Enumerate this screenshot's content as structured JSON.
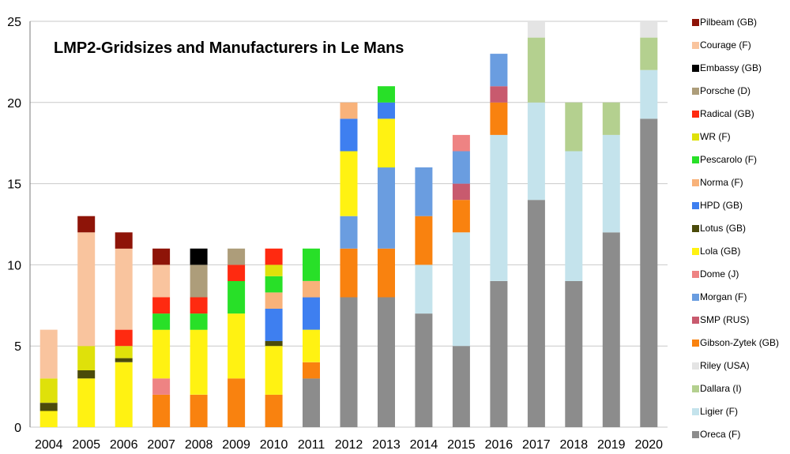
{
  "chart_data": {
    "type": "bar",
    "stacked": true,
    "title": "LMP2-Gridsizes and Manufacturers in Le Mans",
    "xlabel": "",
    "ylabel": "",
    "ylim": [
      0,
      25
    ],
    "yticks": [
      0,
      5,
      10,
      15,
      20,
      25
    ],
    "grid": true,
    "legend_position": "right",
    "categories": [
      "2004",
      "2005",
      "2006",
      "2007",
      "2008",
      "2009",
      "2010",
      "2011",
      "2012",
      "2013",
      "2014",
      "2015",
      "2016",
      "2017",
      "2018",
      "2019",
      "2020"
    ],
    "series": [
      {
        "name": "Oreca (F)",
        "color": "#8c8c8c",
        "values": [
          0,
          0,
          0,
          0,
          0,
          0,
          0,
          3,
          8,
          8,
          7,
          5,
          9,
          14,
          9,
          12,
          19
        ]
      },
      {
        "name": "Ligier (F)",
        "color": "#c4e3ec",
        "values": [
          0,
          0,
          0,
          0,
          0,
          0,
          0,
          0,
          0,
          0,
          3,
          7,
          9,
          6,
          8,
          6,
          3
        ]
      },
      {
        "name": "Dallara (I)",
        "color": "#b4d08f",
        "values": [
          0,
          0,
          0,
          0,
          0,
          0,
          0,
          0,
          0,
          0,
          0,
          0,
          0,
          4,
          3,
          2,
          2
        ]
      },
      {
        "name": "Riley (USA)",
        "color": "#e4e4e4",
        "values": [
          0,
          0,
          0,
          0,
          0,
          0,
          0,
          0,
          0,
          0,
          0,
          0,
          0,
          1,
          0,
          0,
          1
        ]
      },
      {
        "name": "Gibson-Zytek (GB)",
        "color": "#f9820f",
        "values": [
          0,
          0,
          0,
          2,
          2,
          3,
          2,
          1,
          3,
          3,
          3,
          2,
          2,
          0,
          0,
          0,
          0
        ]
      },
      {
        "name": "SMP (RUS)",
        "color": "#c85a6e",
        "values": [
          0,
          0,
          0,
          0,
          0,
          0,
          0,
          0,
          0,
          0,
          0,
          1,
          1,
          0,
          0,
          0,
          0
        ]
      },
      {
        "name": "Morgan (F)",
        "color": "#6a9de0",
        "values": [
          0,
          0,
          0,
          0,
          0,
          0,
          0,
          0,
          2,
          5,
          3,
          2,
          2,
          0,
          0,
          0,
          0
        ]
      },
      {
        "name": "Dome (J)",
        "color": "#ee8383",
        "values": [
          0,
          0,
          0,
          1,
          0,
          0,
          0,
          0,
          0,
          0,
          0,
          1,
          0,
          0,
          0,
          0,
          0
        ]
      },
      {
        "name": "Lola (GB)",
        "color": "#fff212",
        "values": [
          1,
          3,
          4,
          3,
          4,
          4,
          3,
          2,
          4,
          3,
          0,
          0,
          0,
          0,
          0,
          0,
          0
        ]
      },
      {
        "name": "Lotus (GB)",
        "color": "#4b4b0a",
        "values": [
          0.5,
          0.5,
          0.25,
          0,
          0,
          0,
          0.3,
          0,
          0,
          0,
          0,
          0,
          0,
          0,
          0,
          0,
          0
        ]
      },
      {
        "name": "HPD (GB)",
        "color": "#3e7ff0",
        "values": [
          0,
          0,
          0,
          0,
          0,
          0,
          2,
          2,
          2,
          1,
          0,
          0,
          0,
          0,
          0,
          0,
          0
        ]
      },
      {
        "name": "Norma (F)",
        "color": "#f8b27a",
        "values": [
          0,
          0,
          0,
          0,
          0,
          0,
          1,
          1,
          1,
          0,
          0,
          0,
          0,
          0,
          0,
          0,
          0
        ]
      },
      {
        "name": "Pescarolo (F)",
        "color": "#28e028",
        "values": [
          0,
          0,
          0,
          1,
          1,
          2,
          1,
          2,
          0,
          1,
          0,
          0,
          0,
          0,
          0,
          0,
          0
        ]
      },
      {
        "name": "WR (F)",
        "color": "#dfe10a",
        "values": [
          1.5,
          1.5,
          0.75,
          0,
          0,
          0,
          0.7,
          0,
          0,
          0,
          0,
          0,
          0,
          0,
          0,
          0,
          0
        ]
      },
      {
        "name": "Radical (GB)",
        "color": "#ff2a10",
        "values": [
          0,
          0,
          1,
          1,
          1,
          1,
          1,
          0,
          0,
          0,
          0,
          0,
          0,
          0,
          0,
          0,
          0
        ]
      },
      {
        "name": "Porsche (D)",
        "color": "#ad9d7a",
        "values": [
          0,
          0,
          0,
          0,
          2,
          1,
          0,
          0,
          0,
          0,
          0,
          0,
          0,
          0,
          0,
          0,
          0
        ]
      },
      {
        "name": "Embassy (GB)",
        "color": "#000000",
        "values": [
          0,
          0,
          0,
          0,
          1,
          0,
          0,
          0,
          0,
          0,
          0,
          0,
          0,
          0,
          0,
          0,
          0
        ]
      },
      {
        "name": "Courage (F)",
        "color": "#f9c49e",
        "values": [
          3,
          7,
          5,
          2,
          0,
          0,
          0,
          0,
          0,
          0,
          0,
          0,
          0,
          0,
          0,
          0,
          0
        ]
      },
      {
        "name": "Pilbeam (GB)",
        "color": "#8e1408",
        "values": [
          0,
          1,
          1,
          1,
          0,
          0,
          0,
          0,
          0,
          0,
          0,
          0,
          0,
          0,
          0,
          0,
          0
        ]
      }
    ],
    "legend_order": [
      "Pilbeam (GB)",
      "Courage (F)",
      "Embassy (GB)",
      "Porsche (D)",
      "Radical (GB)",
      "WR (F)",
      "Pescarolo (F)",
      "Norma (F)",
      "HPD (GB)",
      "Lotus (GB)",
      "Lola (GB)",
      "Dome (J)",
      "Morgan (F)",
      "SMP (RUS)",
      "Gibson-Zytek (GB)",
      "Riley (USA)",
      "Dallara (I)",
      "Ligier (F)",
      "Oreca (F)"
    ]
  }
}
